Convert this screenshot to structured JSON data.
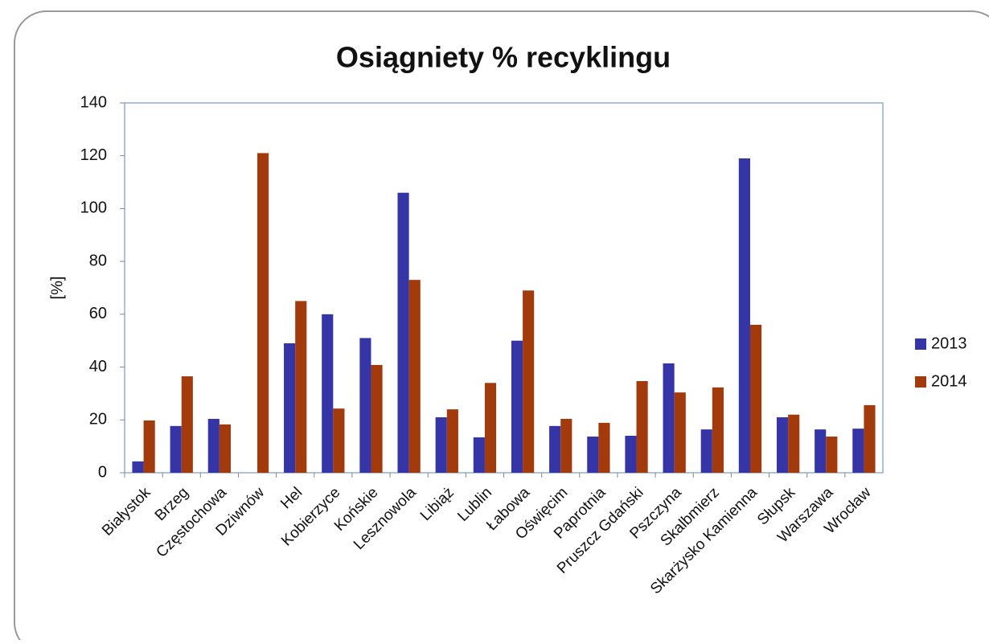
{
  "chart_data": {
    "type": "bar",
    "title": "Osiągniety % recyklingu",
    "y_label": "[%]",
    "categories": [
      "Białystok",
      "Brzeg",
      "Częstochowa",
      "Dziwnów",
      "Hel",
      "Kobierzyce",
      "Końskie",
      "Lesznowola",
      "Libiąż",
      "Lublin",
      "Łabowa",
      "Oświęcim",
      "Paprotnia",
      "Pruszcz Gdański",
      "Pszczyna",
      "Skalbmierz",
      "Skarżysko Kamienna",
      "Słupsk",
      "Warszawa",
      "Wrocław"
    ],
    "series": [
      {
        "name": "2013",
        "color": "#3535a8",
        "values": [
          4.3,
          17.7,
          20.4,
          null,
          49,
          60,
          51,
          106,
          21,
          13.4,
          50,
          17.7,
          13.7,
          14,
          41.4,
          16.4,
          119,
          21,
          16.4,
          16.7
        ]
      },
      {
        "name": "2014",
        "color": "#a33a0c",
        "values": [
          19.8,
          36.5,
          18.3,
          121,
          65,
          24.3,
          40.8,
          73,
          24,
          34,
          69,
          20.4,
          18.9,
          34.7,
          30.4,
          32.3,
          56,
          22,
          13.7,
          25.6
        ]
      }
    ],
    "ylim": [
      0,
      140
    ],
    "yticks": [
      0,
      20,
      40,
      60,
      80,
      100,
      120,
      140
    ],
    "legend": "right"
  }
}
